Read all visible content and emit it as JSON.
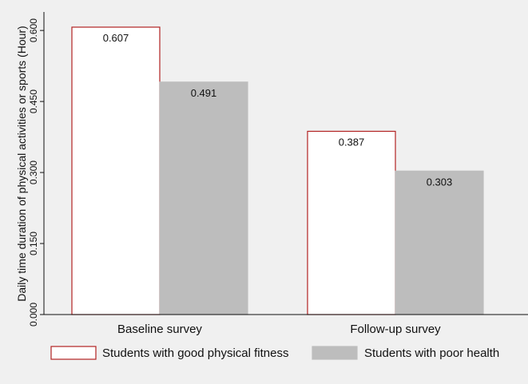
{
  "chart_data": {
    "type": "bar",
    "title": "",
    "xlabel": "",
    "ylabel": "Daily time duration of physical activities or sports (Hour)",
    "categories": [
      "Baseline survey",
      "Follow-up survey"
    ],
    "series": [
      {
        "name": "Students with good physical fitness",
        "values": [
          0.607,
          0.387
        ],
        "value_labels": [
          "0.607",
          "0.387"
        ],
        "fill": "#ffffff",
        "stroke": "#b22222"
      },
      {
        "name": "Students with poor health",
        "values": [
          0.491,
          0.303
        ],
        "value_labels": [
          "0.491",
          "0.303"
        ],
        "fill": "#bdbdbd",
        "stroke": "#bdbdbd"
      }
    ],
    "ylim": [
      0,
      0.607
    ],
    "yticks": [
      0,
      0.15,
      0.3,
      0.45,
      0.6
    ],
    "ytick_labels": [
      "0.000",
      "0.150",
      "0.300",
      "0.450",
      "0.600"
    ],
    "grid": false,
    "legend_position": "bottom"
  }
}
